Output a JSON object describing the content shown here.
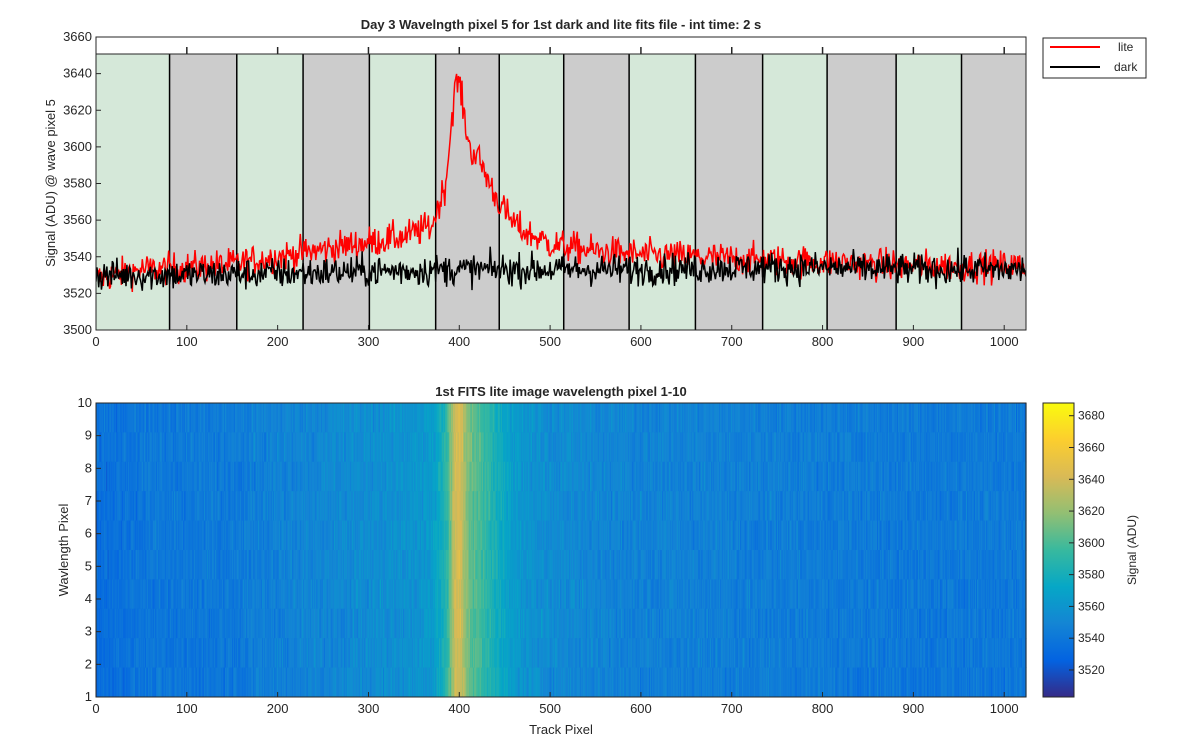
{
  "chart_data": [
    {
      "type": "line",
      "title": "Day 3 Wavelngth pixel 5 for 1st dark and lite fits file - int time: 2 s",
      "xlabel": "",
      "ylabel": "Signal (ADU) @ wave pixel 5",
      "xlim": [
        0,
        1024
      ],
      "ylim": [
        3500,
        3660
      ],
      "xticks": [
        0,
        100,
        200,
        300,
        400,
        500,
        600,
        700,
        800,
        900,
        1000
      ],
      "yticks": [
        3500,
        3520,
        3540,
        3560,
        3580,
        3600,
        3620,
        3640,
        3660
      ],
      "legend_position": "outside-top-right",
      "background_bands": {
        "colors": [
          "#d5e8d9",
          "#cccccc"
        ],
        "boundaries": [
          0,
          81,
          155,
          228,
          301,
          374,
          444,
          515,
          587,
          660,
          734,
          805,
          881,
          953,
          1024
        ]
      },
      "top_strip_ticks": [
        100,
        200,
        300,
        400,
        500,
        600,
        700,
        800,
        900,
        1000
      ],
      "series": [
        {
          "name": "lite",
          "color": "#ff0000",
          "trend": {
            "x": [
              0,
              50,
              100,
              150,
              200,
              250,
              300,
              340,
              370,
              385,
              395,
              400,
              405,
              412,
              420,
              430,
              440,
              455,
              470,
              500,
              550,
              600,
              700,
              800,
              900,
              1024
            ],
            "y": [
              3528,
              3533,
              3534,
              3536,
              3540,
              3544,
              3548,
              3551,
              3557,
              3580,
              3632,
              3636,
              3618,
              3598,
              3595,
              3584,
              3573,
              3561,
              3554,
              3547,
              3543,
              3541,
              3539,
              3537,
              3535,
              3535
            ]
          },
          "noise_amplitude": 6
        },
        {
          "name": "dark",
          "color": "#000000",
          "trend": {
            "x": [
              0,
              100,
              200,
              300,
              400,
              500,
              600,
              700,
              800,
              900,
              1024
            ],
            "y": [
              3530,
              3530,
              3531,
              3532,
              3533,
              3533,
              3533,
              3534,
              3534,
              3533,
              3533
            ]
          },
          "noise_amplitude": 6
        }
      ]
    },
    {
      "type": "heatmap",
      "title": "1st FITS lite image wavelength pixel 1-10",
      "xlabel": "Track Pixel",
      "ylabel": "Wavlength Pixel",
      "xlim": [
        0,
        1024
      ],
      "ylim": [
        1,
        10
      ],
      "xticks": [
        0,
        100,
        200,
        300,
        400,
        500,
        600,
        700,
        800,
        900,
        1000
      ],
      "yticks": [
        1,
        2,
        3,
        4,
        5,
        6,
        7,
        8,
        9,
        10
      ],
      "colormap": "parula",
      "colorbar": {
        "label": "Signal (ADU)",
        "range": [
          3503,
          3688
        ],
        "ticks": [
          3520,
          3540,
          3560,
          3580,
          3600,
          3620,
          3640,
          3660,
          3680
        ]
      },
      "rows": 10,
      "columns": 1024
    }
  ]
}
